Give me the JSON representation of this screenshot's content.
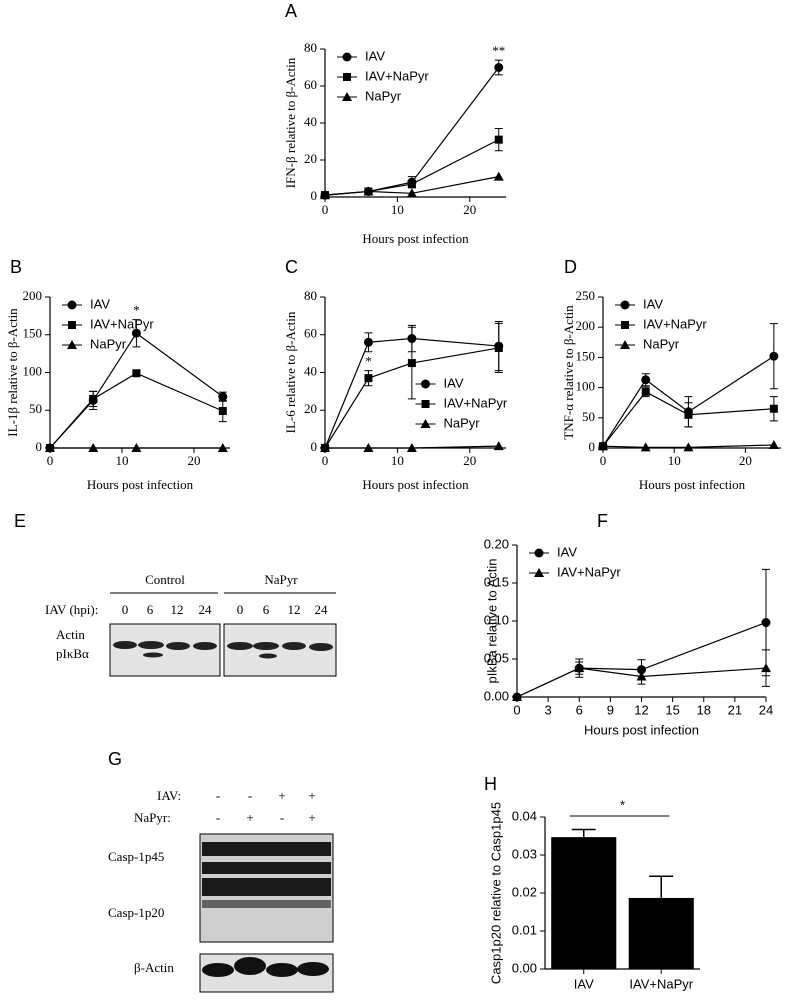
{
  "chart_data": [
    {
      "type": "line",
      "label": "A",
      "ylabel": "IFN-β relative to β-Actin",
      "xlabel": "Hours post infection",
      "x": [
        0,
        6,
        12,
        24
      ],
      "xlim": [
        0,
        25
      ],
      "xticks": [
        0,
        10,
        20
      ],
      "ylim": [
        0,
        80
      ],
      "yticks": [
        0,
        20,
        40,
        60,
        80
      ],
      "legend": "upper left",
      "series": [
        {
          "name": "IAV",
          "color": "#000000",
          "marker": "circle",
          "values": [
            1,
            3,
            8,
            70
          ],
          "errors": [
            null,
            null,
            3,
            4
          ]
        },
        {
          "name": "IAV+NaPyr",
          "color": "#000000",
          "marker": "square",
          "values": [
            1,
            3,
            7,
            31
          ],
          "errors": [
            null,
            null,
            2,
            6
          ]
        },
        {
          "name": "NaPyr",
          "color": "#000000",
          "marker": "triangle",
          "values": [
            1,
            3,
            2,
            11
          ],
          "errors": [
            null,
            null,
            null,
            null
          ]
        }
      ],
      "annotations": [
        {
          "text": "**",
          "x": 24
        }
      ]
    },
    {
      "type": "line",
      "label": "B",
      "ylabel": "IL-1β relative to β-Actin",
      "xlabel": "Hours post infection",
      "x": [
        0,
        6,
        12,
        24
      ],
      "xlim": [
        0,
        25
      ],
      "xticks": [
        0,
        10,
        20
      ],
      "ylim": [
        0,
        200
      ],
      "yticks": [
        0,
        50,
        100,
        150,
        200
      ],
      "legend": "upper left",
      "series": [
        {
          "name": "IAV",
          "color": "#000000",
          "marker": "circle",
          "values": [
            0,
            63,
            152,
            68
          ],
          "errors": [
            null,
            12,
            18,
            6
          ]
        },
        {
          "name": "IAV+NaPyr",
          "color": "#000000",
          "marker": "square",
          "values": [
            0,
            65,
            99,
            49
          ],
          "errors": [
            null,
            10,
            3,
            14
          ]
        },
        {
          "name": "NaPyr",
          "color": "#000000",
          "marker": "triangle",
          "values": [
            0,
            0,
            0,
            0
          ],
          "errors": [
            null,
            null,
            null,
            null
          ]
        }
      ],
      "annotations": [
        {
          "text": "*",
          "x": 12
        }
      ]
    },
    {
      "type": "line",
      "label": "C",
      "ylabel": "IL-6 relative to β-Actin",
      "xlabel": "Hours post infection",
      "x": [
        0,
        6,
        12,
        24
      ],
      "xlim": [
        0,
        25
      ],
      "xticks": [
        0,
        10,
        20
      ],
      "ylim": [
        0,
        80
      ],
      "yticks": [
        0,
        20,
        40,
        60,
        80
      ],
      "legend": "lower right",
      "series": [
        {
          "name": "IAV",
          "color": "#000000",
          "marker": "circle",
          "values": [
            0,
            56,
            58,
            54
          ],
          "errors": [
            null,
            5,
            7,
            13
          ]
        },
        {
          "name": "IAV+NaPyr",
          "color": "#000000",
          "marker": "square",
          "values": [
            0,
            37,
            45,
            53
          ],
          "errors": [
            null,
            4,
            19,
            13
          ]
        },
        {
          "name": "NaPyr",
          "color": "#000000",
          "marker": "triangle",
          "values": [
            0,
            0,
            0,
            1
          ],
          "errors": [
            null,
            null,
            null,
            null
          ]
        }
      ],
      "annotations": [
        {
          "text": "*",
          "x": 6
        }
      ]
    },
    {
      "type": "line",
      "label": "D",
      "ylabel": "TNF-α relative to β-Actin",
      "xlabel": "Hours post infection",
      "x": [
        0,
        6,
        12,
        24
      ],
      "xlim": [
        0,
        25
      ],
      "xticks": [
        0,
        10,
        20
      ],
      "ylim": [
        0,
        250
      ],
      "yticks": [
        0,
        50,
        100,
        150,
        200,
        250
      ],
      "legend": "upper left",
      "series": [
        {
          "name": "IAV",
          "color": "#000000",
          "marker": "circle",
          "values": [
            3,
            113,
            60,
            152
          ],
          "errors": [
            null,
            10,
            25,
            54
          ]
        },
        {
          "name": "IAV+NaPyr",
          "color": "#000000",
          "marker": "square",
          "values": [
            3,
            93,
            55,
            65
          ],
          "errors": [
            null,
            8,
            20,
            20
          ]
        },
        {
          "name": "NaPyr",
          "color": "#000000",
          "marker": "triangle",
          "values": [
            3,
            1,
            1,
            5
          ],
          "errors": [
            null,
            null,
            null,
            null
          ]
        }
      ],
      "annotations": []
    },
    {
      "type": "line",
      "label": "F",
      "ylabel": "pIkBa relative to Actin",
      "xlabel": "Hours post infection",
      "x": [
        0,
        6,
        12,
        24
      ],
      "xlim": [
        0,
        24
      ],
      "xticks": [
        0,
        3,
        6,
        9,
        12,
        15,
        18,
        21,
        24
      ],
      "ylim": [
        0,
        0.2
      ],
      "yticks": [
        {
          "value": 0,
          "label": "0.00"
        },
        {
          "value": 0.05,
          "label": "0.05"
        },
        {
          "value": 0.1,
          "label": "0.10"
        },
        {
          "value": 0.15,
          "label": "0.15"
        },
        {
          "value": 0.2,
          "label": "0.20"
        }
      ],
      "legend": "upper left",
      "series": [
        {
          "name": "IAV",
          "color": "#000000",
          "marker": "circle",
          "values": [
            0,
            0.038,
            0.036,
            0.098
          ],
          "errors": [
            null,
            0.012,
            0.013,
            0.07
          ]
        },
        {
          "name": "IAV+NaPyr",
          "color": "#000000",
          "marker": "triangle",
          "values": [
            0,
            0.038,
            0.027,
            0.038
          ],
          "errors": [
            null,
            0.008,
            0.01,
            0.024
          ]
        }
      ],
      "annotations": []
    },
    {
      "type": "bar",
      "label": "H",
      "ylabel": "Casp1p20 relative to Casp1p45",
      "categories": [
        "IAV",
        "IAV+NaPyr"
      ],
      "values": [
        0.0347,
        0.0187
      ],
      "errors": [
        0.002,
        0.0057
      ],
      "color": "#000000",
      "ylim": [
        0,
        0.04
      ],
      "yticks": [
        {
          "value": 0,
          "label": "0.00"
        },
        {
          "value": 0.01,
          "label": "0.01"
        },
        {
          "value": 0.02,
          "label": "0.02"
        },
        {
          "value": 0.03,
          "label": "0.03"
        },
        {
          "value": 0.04,
          "label": "0.04"
        }
      ],
      "annotations": [
        {
          "text": "*"
        }
      ]
    }
  ],
  "blots": [
    {
      "label": "E",
      "groups": [
        "Control",
        "NaPyr"
      ],
      "row_label": "IAV (hpi):",
      "timepoints": [
        "0",
        "6",
        "12",
        "24"
      ],
      "bands": [
        "Actin",
        "pIκBα"
      ]
    },
    {
      "label": "G",
      "conditions": [
        {
          "name": "IAV:",
          "signs": [
            "-",
            "-",
            "+",
            "+"
          ]
        },
        {
          "name": "NaPyr:",
          "signs": [
            "-",
            "+",
            "-",
            "+"
          ]
        }
      ],
      "bands": [
        "Casp-1p45",
        "Casp-1p20"
      ],
      "loading": "β-Actin"
    }
  ]
}
